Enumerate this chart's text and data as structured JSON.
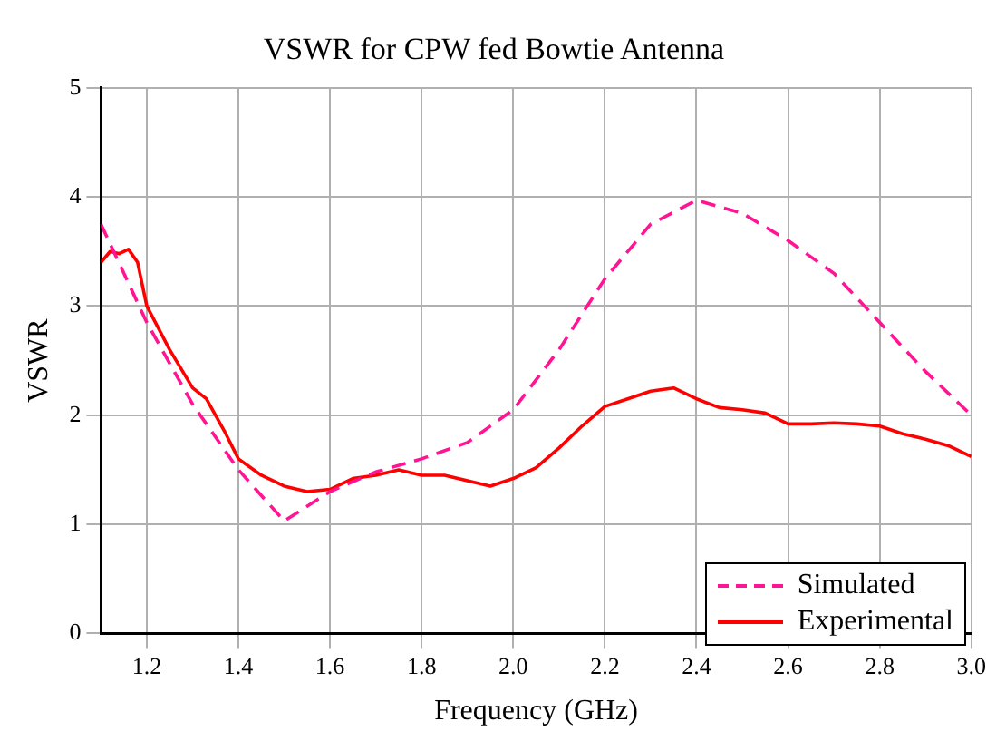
{
  "chart_data": {
    "type": "line",
    "title": "VSWR for CPW fed Bowtie Antenna",
    "xlabel": "Frequency (GHz)",
    "ylabel": "VSWR",
    "xlim": [
      1.1,
      3.0
    ],
    "xticks": [
      1.2,
      1.4,
      1.6,
      1.8,
      {
        "value": 2,
        "label": "2.0"
      },
      2.2,
      2.4,
      2.6,
      2.8,
      {
        "value": 3,
        "label": "3.0"
      }
    ],
    "ylim": [
      0,
      5
    ],
    "yticks": [
      0,
      1,
      2,
      3,
      4,
      5
    ],
    "grid": true,
    "legend": "bottom right",
    "marker": "none",
    "series": [
      {
        "name": "Simulated",
        "color": "#ff1493",
        "line_style": "dashed",
        "x": [
          1.1,
          1.2,
          1.3,
          1.4,
          1.5,
          1.6,
          1.7,
          1.8,
          1.9,
          2.0,
          2.1,
          2.2,
          2.3,
          2.4,
          2.5,
          2.6,
          2.7,
          2.8,
          2.9,
          3.0
        ],
        "values": [
          3.75,
          2.85,
          2.1,
          1.5,
          1.03,
          1.3,
          1.48,
          1.6,
          1.75,
          2.05,
          2.6,
          3.25,
          3.75,
          3.97,
          3.85,
          3.6,
          3.3,
          2.85,
          2.4,
          2.0
        ]
      },
      {
        "name": "Experimental",
        "color": "#ff0000",
        "line_style": "solid",
        "x": [
          1.1,
          1.12,
          1.14,
          1.16,
          1.18,
          1.2,
          1.25,
          1.3,
          1.33,
          1.37,
          1.4,
          1.45,
          1.5,
          1.55,
          1.6,
          1.65,
          1.7,
          1.75,
          1.8,
          1.85,
          1.9,
          1.95,
          2.0,
          2.05,
          2.1,
          2.15,
          2.2,
          2.25,
          2.3,
          2.35,
          2.4,
          2.45,
          2.5,
          2.55,
          2.6,
          2.65,
          2.7,
          2.75,
          2.8,
          2.85,
          2.9,
          2.95,
          3.0
        ],
        "values": [
          3.4,
          3.5,
          3.48,
          3.52,
          3.4,
          3.0,
          2.6,
          2.25,
          2.15,
          1.85,
          1.6,
          1.45,
          1.35,
          1.3,
          1.32,
          1.42,
          1.45,
          1.5,
          1.45,
          1.45,
          1.4,
          1.35,
          1.42,
          1.52,
          1.7,
          1.9,
          2.08,
          2.15,
          2.22,
          2.25,
          2.15,
          2.07,
          2.05,
          2.02,
          1.92,
          1.92,
          1.93,
          1.92,
          1.9,
          1.83,
          1.78,
          1.72,
          1.62
        ]
      }
    ]
  }
}
